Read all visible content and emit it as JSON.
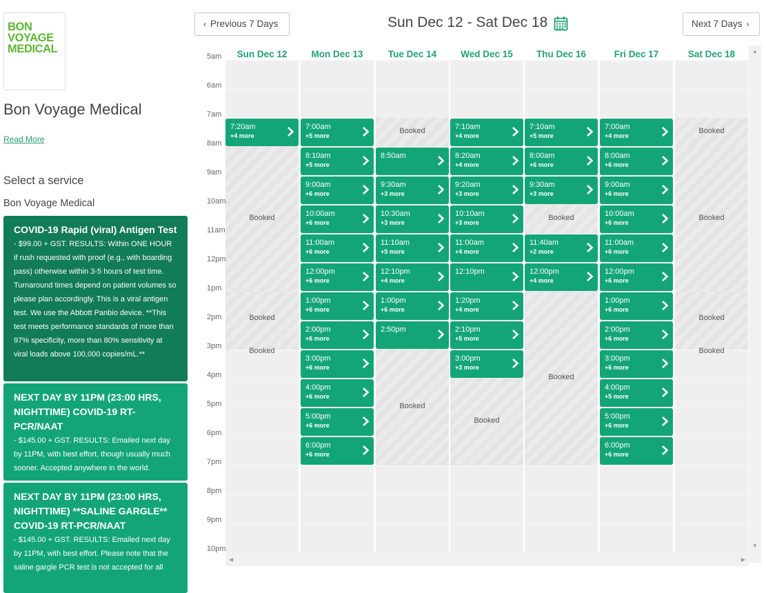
{
  "sidebar": {
    "logo": [
      "BON",
      "VOYAGE",
      "MEDICAL"
    ],
    "business_name": "Bon Voyage Medical",
    "read_more": "Read More",
    "select_service": "Select a service",
    "business_subtitle": "Bon Voyage Medical",
    "services": [
      {
        "title": "COVID-19 Rapid (viral) Antigen Test",
        "desc": "- $99.00 + GST. RESULTS: Within ONE HOUR if rush requested with proof (e.g., with boarding pass) otherwise within 3-5 hours of test time. Turnaround times depend on patient volumes so please plan accordingly. This is a viral antigen test. We use the Abbott Panbio device. **This test meets performance standards of more than 97% specificity, more than 80% sensitivity at viral loads above 100,000 copies/mL.**"
      },
      {
        "title": "NEXT DAY BY 11PM (23:00 HRS, NIGHTTIME) COVID-19 RT-PCR/NAAT",
        "desc": "- $145.00 + GST. RESULTS: Emailed next day by 11PM, with best effort, though usually much sooner. Accepted anywhere in the world."
      },
      {
        "title": "NEXT DAY BY 11PM (23:00 HRS, NIGHTTIME) **SALINE GARGLE** COVID-19 RT-PCR/NAAT",
        "desc": "- $145.00 + GST. RESULTS: Emailed next day by 11PM, with best effort. Please note that the saline gargle PCR test is not accepted for all"
      }
    ]
  },
  "header": {
    "prev_label": "Previous 7 Days",
    "next_label": "Next 7 Days",
    "title": "Sun Dec 12 - Sat Dec 18"
  },
  "booked_label": "Booked",
  "times": [
    "5am",
    "6am",
    "7am",
    "8am",
    "9am",
    "10am",
    "11am",
    "12pm",
    "1pm",
    "2pm",
    "3pm",
    "4pm",
    "5pm",
    "6pm",
    "7pm",
    "8pm",
    "9pm",
    "10pm"
  ],
  "days": [
    {
      "label": "Sun Dec 12",
      "slots": [
        {
          "h": 7,
          "time": "7:20am",
          "more": "+4 more"
        }
      ],
      "booked": [
        {
          "from": 8,
          "to": 13
        },
        {
          "from": 13,
          "to": 14.9
        },
        {
          "from": 14.9,
          "to": 15
        }
      ]
    },
    {
      "label": "Mon Dec 13",
      "slots": [
        {
          "h": 7,
          "time": "7:00am",
          "more": "+5 more"
        },
        {
          "h": 8,
          "time": "8:10am",
          "more": "+5 more"
        },
        {
          "h": 9,
          "time": "9:00am",
          "more": "+6 more"
        },
        {
          "h": 10,
          "time": "10:00am",
          "more": "+6 more"
        },
        {
          "h": 11,
          "time": "11:00am",
          "more": "+6 more"
        },
        {
          "h": 12,
          "time": "12:00pm",
          "more": "+6 more"
        },
        {
          "h": 13,
          "time": "1:00pm",
          "more": "+6 more"
        },
        {
          "h": 14,
          "time": "2:00pm",
          "more": "+6 more"
        },
        {
          "h": 15,
          "time": "3:00pm",
          "more": "+6 more"
        },
        {
          "h": 16,
          "time": "4:00pm",
          "more": "+6 more"
        },
        {
          "h": 17,
          "time": "5:00pm",
          "more": "+6 more"
        },
        {
          "h": 18,
          "time": "6:00pm",
          "more": "+6 more"
        }
      ],
      "booked": []
    },
    {
      "label": "Tue Dec 14",
      "slots": [
        {
          "h": 8,
          "time": "8:50am",
          "more": ""
        },
        {
          "h": 9,
          "time": "9:30am",
          "more": "+3 more"
        },
        {
          "h": 10,
          "time": "10:30am",
          "more": "+3 more"
        },
        {
          "h": 11,
          "time": "11:10am",
          "more": "+5 more"
        },
        {
          "h": 12,
          "time": "12:10pm",
          "more": "+4 more"
        },
        {
          "h": 13,
          "time": "1:00pm",
          "more": "+6 more"
        },
        {
          "h": 14,
          "time": "2:50pm",
          "more": ""
        }
      ],
      "booked": [
        {
          "from": 7,
          "to": 8
        },
        {
          "from": 15,
          "to": 19
        }
      ]
    },
    {
      "label": "Wed Dec 15",
      "slots": [
        {
          "h": 7,
          "time": "7:10am",
          "more": "+4 more"
        },
        {
          "h": 8,
          "time": "8:20am",
          "more": "+4 more"
        },
        {
          "h": 9,
          "time": "9:20am",
          "more": "+3 more"
        },
        {
          "h": 10,
          "time": "10:10am",
          "more": "+3 more"
        },
        {
          "h": 11,
          "time": "11:00am",
          "more": "+4 more"
        },
        {
          "h": 12,
          "time": "12:10pm",
          "more": ""
        },
        {
          "h": 13,
          "time": "1:20pm",
          "more": "+4 more"
        },
        {
          "h": 14,
          "time": "2:10pm",
          "more": "+5 more"
        },
        {
          "h": 15,
          "time": "3:00pm",
          "more": "+3 more"
        }
      ],
      "booked": [
        {
          "from": 16,
          "to": 19
        }
      ]
    },
    {
      "label": "Thu Dec 16",
      "slots": [
        {
          "h": 7,
          "time": "7:10am",
          "more": "+5 more"
        },
        {
          "h": 8,
          "time": "8:00am",
          "more": "+6 more"
        },
        {
          "h": 9,
          "time": "9:30am",
          "more": "+3 more"
        },
        {
          "h": 11,
          "time": "11:40am",
          "more": "+2 more"
        },
        {
          "h": 12,
          "time": "12:00pm",
          "more": "+4 more"
        }
      ],
      "booked": [
        {
          "from": 10,
          "to": 11
        },
        {
          "from": 13,
          "to": 19
        }
      ]
    },
    {
      "label": "Fri Dec 17",
      "slots": [
        {
          "h": 7,
          "time": "7:00am",
          "more": "+4 more"
        },
        {
          "h": 8,
          "time": "8:00am",
          "more": "+6 more"
        },
        {
          "h": 9,
          "time": "9:00am",
          "more": "+6 more"
        },
        {
          "h": 10,
          "time": "10:00am",
          "more": "+6 more"
        },
        {
          "h": 11,
          "time": "11:00am",
          "more": "+6 more"
        },
        {
          "h": 12,
          "time": "12:00pm",
          "more": "+6 more"
        },
        {
          "h": 13,
          "time": "1:00pm",
          "more": "+6 more"
        },
        {
          "h": 14,
          "time": "2:00pm",
          "more": "+6 more"
        },
        {
          "h": 15,
          "time": "3:00pm",
          "more": "+6 more"
        },
        {
          "h": 16,
          "time": "4:00pm",
          "more": "+5 more"
        },
        {
          "h": 17,
          "time": "5:00pm",
          "more": "+6 more"
        },
        {
          "h": 18,
          "time": "6:00pm",
          "more": "+6 more"
        }
      ],
      "booked": []
    },
    {
      "label": "Sat Dec 18",
      "slots": [],
      "booked": [
        {
          "from": 7,
          "to": 8
        },
        {
          "from": 8,
          "to": 13
        },
        {
          "from": 13,
          "to": 14.9
        },
        {
          "from": 14.9,
          "to": 15
        }
      ]
    }
  ]
}
